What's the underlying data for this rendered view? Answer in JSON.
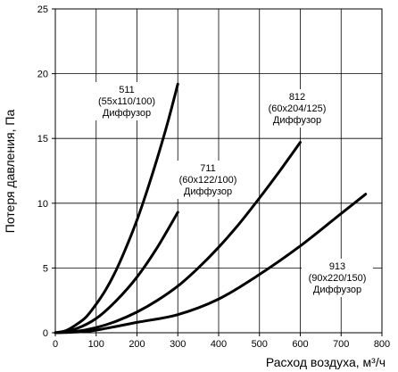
{
  "chart_data": {
    "type": "line",
    "title": "",
    "xlabel": "Расход воздуха, м³/ч",
    "ylabel": "Потеря давления, Па",
    "xlim": [
      0,
      800
    ],
    "ylim": [
      0,
      25
    ],
    "xticks": [
      0,
      100,
      200,
      300,
      400,
      500,
      600,
      700,
      800
    ],
    "yticks": [
      0,
      5,
      10,
      15,
      20,
      25
    ],
    "grid": true,
    "legend": "none",
    "series": [
      {
        "name": "511 (55x110/100) Диффузор",
        "label_lines": [
          "511",
          "(55x110/100)",
          "Диффузор"
        ],
        "x": [
          0,
          25,
          50,
          75,
          100,
          125,
          150,
          175,
          200,
          225,
          250,
          275,
          300
        ],
        "y": [
          0,
          0.15,
          0.6,
          1.2,
          2.2,
          3.4,
          4.9,
          6.7,
          8.7,
          11.0,
          13.5,
          16.2,
          19.2
        ]
      },
      {
        "name": "711 (60x122/100) Диффузор",
        "label_lines": [
          "711",
          "(60x122/100)",
          "Диффузор"
        ],
        "x": [
          0,
          50,
          100,
          150,
          200,
          250,
          300
        ],
        "y": [
          0,
          0.3,
          1.1,
          2.5,
          4.3,
          6.6,
          9.3
        ]
      },
      {
        "name": "812 (60x204/125) Диффузор",
        "label_lines": [
          "812",
          "(60x204/125)",
          "Диффузор"
        ],
        "x": [
          0,
          50,
          100,
          150,
          200,
          250,
          300,
          350,
          400,
          450,
          500,
          550,
          600
        ],
        "y": [
          0,
          0.1,
          0.4,
          0.9,
          1.6,
          2.5,
          3.6,
          5.0,
          6.6,
          8.4,
          10.4,
          12.5,
          14.7
        ]
      },
      {
        "name": "913 (90x220/150) Диффузор",
        "label_lines": [
          "913",
          "(90x220/150)",
          "Диффузор"
        ],
        "x": [
          0,
          50,
          100,
          200,
          300,
          400,
          500,
          600,
          700,
          760
        ],
        "y": [
          0,
          0.05,
          0.2,
          0.8,
          1.4,
          2.6,
          4.5,
          6.7,
          9.2,
          10.7
        ]
      }
    ]
  }
}
